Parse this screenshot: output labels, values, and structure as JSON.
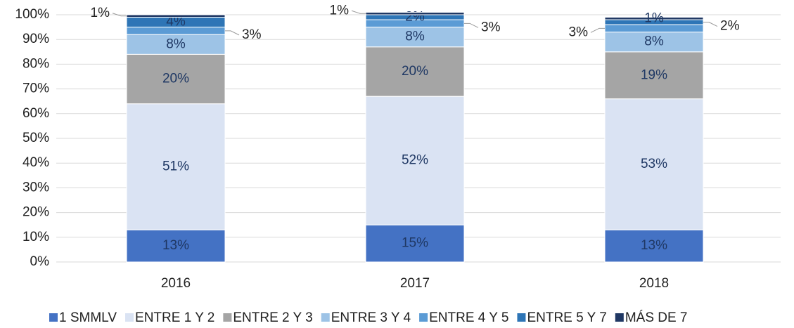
{
  "chart_data": {
    "type": "stacked_bar",
    "categories": [
      "2016",
      "2017",
      "2018"
    ],
    "series": [
      {
        "name": "1 SMMLV",
        "color": "#4472c4",
        "values": [
          13,
          15,
          13
        ],
        "value_labels": [
          "13%",
          "15%",
          "13%"
        ]
      },
      {
        "name": "ENTRE 1 Y 2",
        "color": "#dae3f3",
        "values": [
          51,
          52,
          53
        ],
        "value_labels": [
          "51%",
          "52%",
          "53%"
        ]
      },
      {
        "name": "ENTRE 2 Y 3",
        "color": "#a5a5a5",
        "values": [
          20,
          20,
          19
        ],
        "value_labels": [
          "20%",
          "20%",
          "19%"
        ]
      },
      {
        "name": "ENTRE 3 Y 4",
        "color": "#9dc3e6",
        "values": [
          8,
          8,
          8
        ],
        "value_labels": [
          "8%",
          "8%",
          "8%"
        ]
      },
      {
        "name": "ENTRE 4 Y 5",
        "color": "#5b9bd5",
        "values": [
          3,
          3,
          3
        ],
        "value_labels": [
          "3%",
          "3%",
          "3%"
        ]
      },
      {
        "name": "ENTRE 5 Y 7",
        "color": "#2e75b6",
        "values": [
          4,
          2,
          2
        ],
        "value_labels": [
          "4%",
          "2%",
          "2%"
        ]
      },
      {
        "name": "MÁS DE 7",
        "color": "#203864",
        "values": [
          1,
          1,
          1
        ],
        "value_labels": [
          "1%",
          "1%",
          "1%"
        ]
      }
    ],
    "ylim": [
      0,
      100
    ],
    "yticks": [
      {
        "value": 0,
        "label": "0%"
      },
      {
        "value": 10,
        "label": "10%"
      },
      {
        "value": 20,
        "label": "20%"
      },
      {
        "value": 30,
        "label": "30%"
      },
      {
        "value": 40,
        "label": "40%"
      },
      {
        "value": 50,
        "label": "50%"
      },
      {
        "value": 60,
        "label": "60%"
      },
      {
        "value": 70,
        "label": "70%"
      },
      {
        "value": 80,
        "label": "80%"
      },
      {
        "value": 90,
        "label": "90%"
      },
      {
        "value": 100,
        "label": "100%"
      }
    ],
    "grid": true,
    "legend": "bottom"
  }
}
